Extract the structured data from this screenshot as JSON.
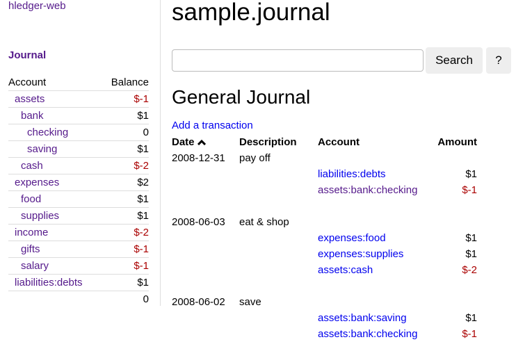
{
  "sidebar": {
    "brand": "hledger-web",
    "journal_link": "Journal",
    "headers": {
      "account": "Account",
      "balance": "Balance"
    },
    "accounts": [
      {
        "name": "assets",
        "balance": "$-1",
        "depth": 1,
        "neg": true
      },
      {
        "name": "bank",
        "balance": "$1",
        "depth": 2,
        "neg": false
      },
      {
        "name": "checking",
        "balance": "0",
        "depth": 3,
        "neg": false
      },
      {
        "name": "saving",
        "balance": "$1",
        "depth": 3,
        "neg": false
      },
      {
        "name": "cash",
        "balance": "$-2",
        "depth": 2,
        "neg": true
      },
      {
        "name": "expenses",
        "balance": "$2",
        "depth": 1,
        "neg": false
      },
      {
        "name": "food",
        "balance": "$1",
        "depth": 2,
        "neg": false
      },
      {
        "name": "supplies",
        "balance": "$1",
        "depth": 2,
        "neg": false
      },
      {
        "name": "income",
        "balance": "$-2",
        "depth": 1,
        "neg": true
      },
      {
        "name": "gifts",
        "balance": "$-1",
        "depth": 2,
        "neg": true
      },
      {
        "name": "salary",
        "balance": "$-1",
        "depth": 2,
        "neg": true
      },
      {
        "name": "liabilities:debts",
        "balance": "$1",
        "depth": 1,
        "neg": false
      }
    ],
    "total": "0"
  },
  "header": {
    "title": "sample.journal",
    "search_value": "",
    "search_label": "Search",
    "help_label": "?"
  },
  "journal": {
    "title": "General Journal",
    "add_label": "Add a transaction",
    "sort_icon": "chevron-up-icon",
    "columns": [
      "Date",
      "Description",
      "Account",
      "Amount"
    ],
    "transactions": [
      {
        "date": "2008-12-31",
        "description": "pay off",
        "postings": [
          {
            "account": "liabilities:debts",
            "amount": "$1",
            "neg": false,
            "visited": false
          },
          {
            "account": "assets:bank:checking",
            "amount": "$-1",
            "neg": true,
            "visited": true
          }
        ]
      },
      {
        "date": "2008-06-03",
        "description": "eat & shop",
        "postings": [
          {
            "account": "expenses:food",
            "amount": "$1",
            "neg": false,
            "visited": false
          },
          {
            "account": "expenses:supplies",
            "amount": "$1",
            "neg": false,
            "visited": false
          },
          {
            "account": "assets:cash",
            "amount": "$-2",
            "neg": true,
            "visited": false
          }
        ]
      },
      {
        "date": "2008-06-02",
        "description": "save",
        "postings": [
          {
            "account": "assets:bank:saving",
            "amount": "$1",
            "neg": false,
            "visited": false
          },
          {
            "account": "assets:bank:checking",
            "amount": "$-1",
            "neg": true,
            "visited": false
          }
        ]
      }
    ]
  },
  "colors": {
    "link": "#0000ee",
    "visited": "#551a8b",
    "negative": "#aa0000"
  }
}
